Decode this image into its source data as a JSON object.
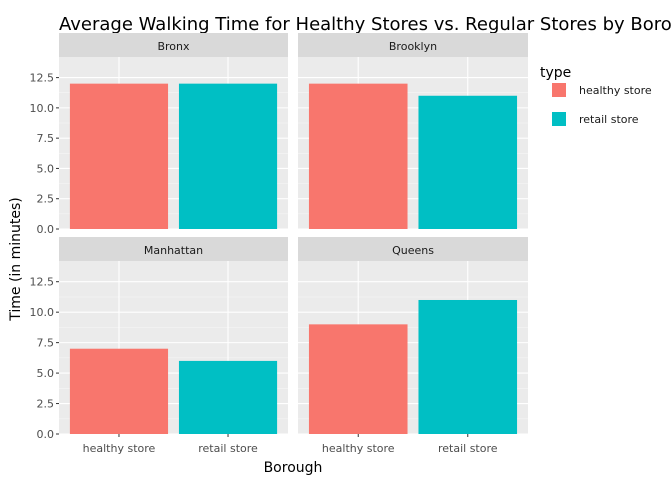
{
  "chart_data": {
    "type": "bar",
    "title": "Average Walking Time for Healthy Stores vs. Regular Stores by Borough",
    "xlabel": "Borough",
    "ylabel": "Time (in minutes)",
    "ylim": [
      0,
      14.2
    ],
    "yticks": [
      "0.0",
      "2.5",
      "5.0",
      "7.5",
      "10.0",
      "12.5"
    ],
    "categories": [
      "healthy store",
      "retail store"
    ],
    "legend": {
      "title": "type",
      "position": "right"
    },
    "grid": true,
    "series": [
      {
        "name": "healthy store",
        "color": "#f8766d"
      },
      {
        "name": "retail store",
        "color": "#00bfc4"
      }
    ],
    "facets": [
      {
        "label": "Bronx",
        "values": [
          12,
          12
        ]
      },
      {
        "label": "Brooklyn",
        "values": [
          12,
          11
        ]
      },
      {
        "label": "Manhattan",
        "values": [
          7,
          6
        ]
      },
      {
        "label": "Queens",
        "values": [
          9,
          11
        ]
      }
    ],
    "panel_bg": "#ebebeb",
    "strip_bg": "#d9d9d9"
  }
}
